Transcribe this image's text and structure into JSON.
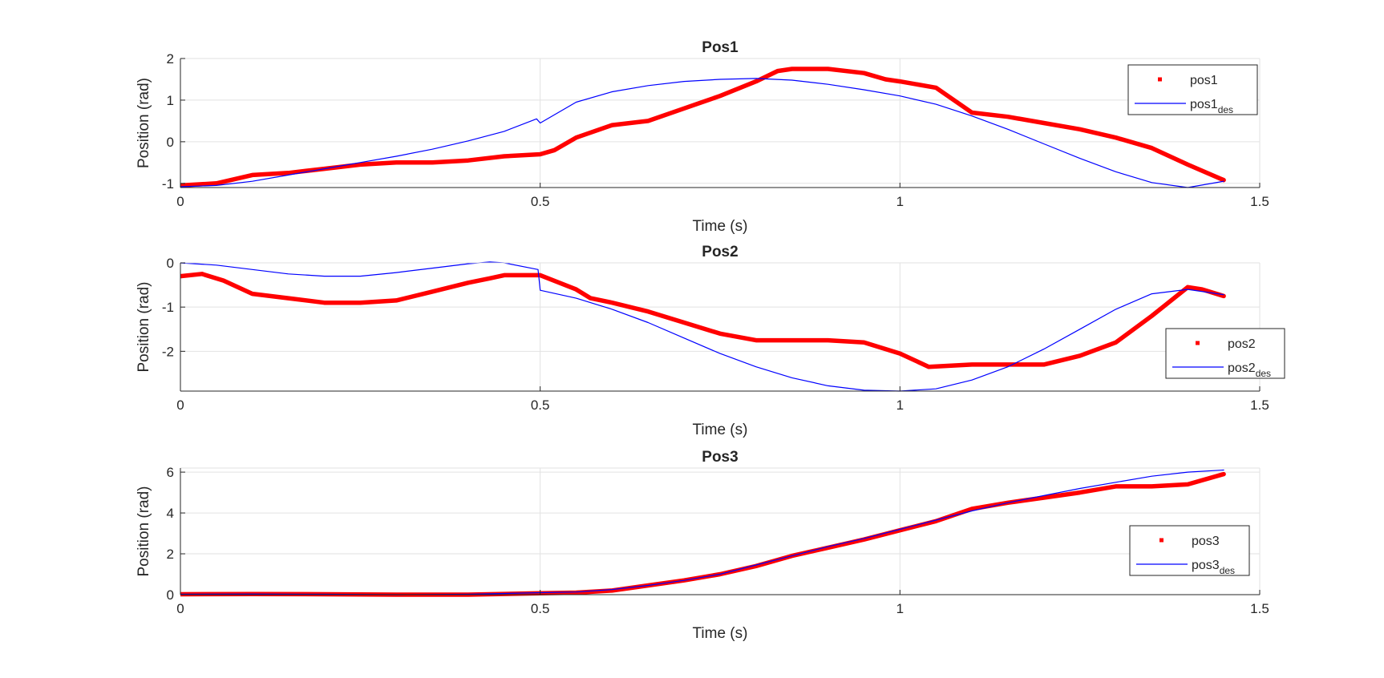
{
  "chart_data": [
    {
      "type": "line",
      "title": "Pos1",
      "xlabel": "Time (s)",
      "ylabel": "Position (rad)",
      "xlim": [
        0,
        1.5
      ],
      "ylim": [
        -1.1,
        2
      ],
      "xticks": [
        0,
        0.5,
        1,
        1.5
      ],
      "xtick_labels": [
        "0",
        "0.5",
        "1",
        "1.5"
      ],
      "yticks": [
        -1,
        0,
        1,
        2
      ],
      "ytick_labels": [
        "-1",
        "0",
        "1",
        "2"
      ],
      "grid": true,
      "legend_position": "top-right",
      "series": [
        {
          "name": "pos1",
          "color": "#ff0000",
          "style": "thick-markers",
          "x": [
            0,
            0.05,
            0.1,
            0.15,
            0.2,
            0.25,
            0.3,
            0.35,
            0.4,
            0.45,
            0.5,
            0.52,
            0.55,
            0.6,
            0.65,
            0.7,
            0.75,
            0.8,
            0.83,
            0.85,
            0.9,
            0.95,
            0.98,
            1.0,
            1.05,
            1.1,
            1.15,
            1.2,
            1.25,
            1.3,
            1.35,
            1.4,
            1.45
          ],
          "y": [
            -1.05,
            -1.0,
            -0.8,
            -0.75,
            -0.65,
            -0.55,
            -0.5,
            -0.5,
            -0.45,
            -0.35,
            -0.3,
            -0.2,
            0.1,
            0.4,
            0.5,
            0.8,
            1.1,
            1.45,
            1.7,
            1.75,
            1.75,
            1.65,
            1.5,
            1.45,
            1.3,
            0.7,
            0.6,
            0.45,
            0.3,
            0.1,
            -0.15,
            -0.55,
            -0.92
          ]
        },
        {
          "name": "pos1",
          "name_sub": "des",
          "color": "#0000ff",
          "style": "thin-line",
          "x": [
            0,
            0.05,
            0.1,
            0.15,
            0.2,
            0.25,
            0.3,
            0.35,
            0.4,
            0.45,
            0.495,
            0.5,
            0.55,
            0.6,
            0.65,
            0.7,
            0.75,
            0.8,
            0.85,
            0.9,
            0.95,
            1.0,
            1.05,
            1.1,
            1.15,
            1.2,
            1.25,
            1.3,
            1.35,
            1.4,
            1.45
          ],
          "y": [
            -1.08,
            -1.05,
            -0.95,
            -0.8,
            -0.65,
            -0.5,
            -0.35,
            -0.18,
            0.02,
            0.25,
            0.55,
            0.45,
            0.95,
            1.2,
            1.35,
            1.45,
            1.5,
            1.52,
            1.48,
            1.38,
            1.25,
            1.1,
            0.9,
            0.62,
            0.3,
            -0.05,
            -0.4,
            -0.72,
            -0.98,
            -1.1,
            -0.95
          ]
        }
      ]
    },
    {
      "type": "line",
      "title": "Pos2",
      "xlabel": "Time (s)",
      "ylabel": "Position (rad)",
      "xlim": [
        0,
        1.5
      ],
      "ylim": [
        -2.9,
        0
      ],
      "xticks": [
        0,
        0.5,
        1,
        1.5
      ],
      "xtick_labels": [
        "0",
        "0.5",
        "1",
        "1.5"
      ],
      "yticks": [
        -2,
        -1,
        0
      ],
      "ytick_labels": [
        "-2",
        "-1",
        "0"
      ],
      "grid": true,
      "legend_position": "right",
      "series": [
        {
          "name": "pos2",
          "color": "#ff0000",
          "style": "thick-markers",
          "x": [
            0,
            0.03,
            0.06,
            0.1,
            0.15,
            0.2,
            0.25,
            0.3,
            0.35,
            0.4,
            0.43,
            0.45,
            0.5,
            0.55,
            0.57,
            0.6,
            0.65,
            0.7,
            0.75,
            0.8,
            0.85,
            0.9,
            0.95,
            1.0,
            1.04,
            1.1,
            1.15,
            1.2,
            1.25,
            1.3,
            1.35,
            1.4,
            1.42,
            1.45
          ],
          "y": [
            -0.3,
            -0.25,
            -0.4,
            -0.7,
            -0.8,
            -0.9,
            -0.9,
            -0.85,
            -0.65,
            -0.45,
            -0.35,
            -0.28,
            -0.28,
            -0.6,
            -0.8,
            -0.9,
            -1.1,
            -1.35,
            -1.6,
            -1.75,
            -1.75,
            -1.75,
            -1.8,
            -2.05,
            -2.35,
            -2.3,
            -2.3,
            -2.3,
            -2.1,
            -1.8,
            -1.2,
            -0.55,
            -0.6,
            -0.75
          ]
        },
        {
          "name": "pos2",
          "name_sub": "des",
          "color": "#0000ff",
          "style": "thin-line",
          "x": [
            0,
            0.05,
            0.1,
            0.15,
            0.2,
            0.25,
            0.3,
            0.35,
            0.4,
            0.43,
            0.45,
            0.497,
            0.5,
            0.55,
            0.6,
            0.65,
            0.7,
            0.75,
            0.8,
            0.85,
            0.9,
            0.95,
            1.0,
            1.05,
            1.1,
            1.15,
            1.2,
            1.25,
            1.3,
            1.35,
            1.4,
            1.45
          ],
          "y": [
            0,
            -0.05,
            -0.15,
            -0.25,
            -0.3,
            -0.3,
            -0.22,
            -0.12,
            -0.02,
            0.02,
            0.0,
            -0.15,
            -0.62,
            -0.8,
            -1.05,
            -1.35,
            -1.7,
            -2.05,
            -2.35,
            -2.6,
            -2.78,
            -2.88,
            -2.9,
            -2.85,
            -2.65,
            -2.35,
            -1.95,
            -1.5,
            -1.05,
            -0.7,
            -0.6,
            -0.72
          ]
        }
      ]
    },
    {
      "type": "line",
      "title": "Pos3",
      "xlabel": "Time (s)",
      "ylabel": "Position (rad)",
      "xlim": [
        0,
        1.5
      ],
      "ylim": [
        0,
        6.2
      ],
      "xticks": [
        0,
        0.5,
        1,
        1.5
      ],
      "xtick_labels": [
        "0",
        "0.5",
        "1",
        "1.5"
      ],
      "yticks": [
        0,
        2,
        4,
        6
      ],
      "ytick_labels": [
        "0",
        "2",
        "4",
        "6"
      ],
      "grid": true,
      "legend_position": "right",
      "series": [
        {
          "name": "pos3",
          "color": "#ff0000",
          "style": "thick-markers",
          "x": [
            0,
            0.1,
            0.2,
            0.3,
            0.4,
            0.5,
            0.55,
            0.6,
            0.65,
            0.7,
            0.75,
            0.8,
            0.85,
            0.9,
            0.95,
            1.0,
            1.05,
            1.1,
            1.15,
            1.2,
            1.25,
            1.3,
            1.35,
            1.4,
            1.45
          ],
          "y": [
            0.02,
            0.03,
            0.02,
            0.0,
            0.0,
            0.07,
            0.1,
            0.2,
            0.45,
            0.7,
            1.0,
            1.4,
            1.9,
            2.3,
            2.7,
            3.15,
            3.6,
            4.2,
            4.5,
            4.75,
            5.0,
            5.3,
            5.3,
            5.4,
            5.9
          ]
        },
        {
          "name": "pos3",
          "name_sub": "des",
          "color": "#0000ff",
          "style": "thin-line",
          "x": [
            0,
            0.1,
            0.2,
            0.3,
            0.4,
            0.5,
            0.55,
            0.6,
            0.65,
            0.7,
            0.75,
            0.8,
            0.85,
            0.9,
            0.95,
            1.0,
            1.05,
            1.1,
            1.15,
            1.2,
            1.25,
            1.3,
            1.35,
            1.4,
            1.45
          ],
          "y": [
            0.02,
            0.03,
            0.02,
            0.0,
            0.02,
            0.1,
            0.13,
            0.25,
            0.45,
            0.7,
            1.0,
            1.45,
            1.9,
            2.35,
            2.75,
            3.2,
            3.65,
            4.1,
            4.5,
            4.85,
            5.2,
            5.5,
            5.8,
            6.0,
            6.1
          ]
        }
      ]
    }
  ]
}
